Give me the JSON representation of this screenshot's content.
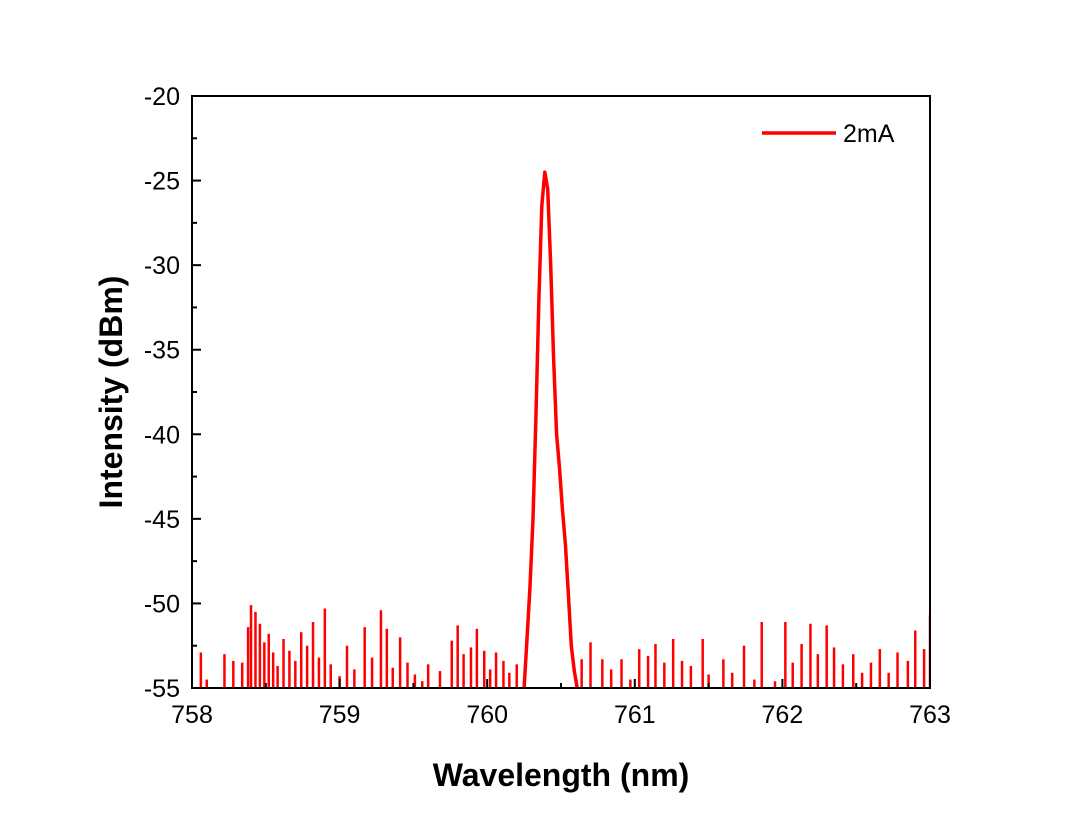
{
  "chart_data": {
    "type": "line",
    "title": "",
    "xlabel": "Wavelength (nm)",
    "ylabel": "Intensity (dBm)",
    "xlim": [
      758,
      763
    ],
    "ylim": [
      -55,
      -20
    ],
    "xticks": [
      758,
      759,
      760,
      761,
      762,
      763
    ],
    "yticks": [
      -20,
      -25,
      -30,
      -35,
      -40,
      -45,
      -50,
      -55
    ],
    "x_tick_labels": [
      "758",
      "759",
      "760",
      "761",
      "762",
      "763"
    ],
    "y_tick_labels": [
      "-20",
      "-25",
      "-30",
      "-35",
      "-40",
      "-45",
      "-50",
      "-55"
    ],
    "grid": false,
    "legend": {
      "position": "top-right",
      "entries": [
        {
          "name": "2mA",
          "color": "#ff0000"
        }
      ]
    },
    "series": [
      {
        "name": "2mA",
        "color": "#ff0000",
        "peak": [
          [
            760.25,
            -55.0
          ],
          [
            760.27,
            -52.0
          ],
          [
            760.29,
            -49.0
          ],
          [
            760.31,
            -45.0
          ],
          [
            760.33,
            -39.0
          ],
          [
            760.35,
            -32.0
          ],
          [
            760.37,
            -26.5
          ],
          [
            760.39,
            -24.5
          ],
          [
            760.41,
            -25.5
          ],
          [
            760.43,
            -30.0
          ],
          [
            760.45,
            -35.5
          ],
          [
            760.47,
            -40.0
          ],
          [
            760.49,
            -42.0
          ],
          [
            760.51,
            -44.5
          ],
          [
            760.53,
            -46.5
          ],
          [
            760.55,
            -49.5
          ],
          [
            760.57,
            -52.5
          ],
          [
            760.59,
            -54.0
          ],
          [
            760.61,
            -55.0
          ]
        ],
        "spikes": [
          [
            758.06,
            -52.9
          ],
          [
            758.1,
            -54.5
          ],
          [
            758.22,
            -53.0
          ],
          [
            758.28,
            -53.4
          ],
          [
            758.34,
            -53.5
          ],
          [
            758.38,
            -51.4
          ],
          [
            758.4,
            -50.1
          ],
          [
            758.43,
            -50.5
          ],
          [
            758.46,
            -51.2
          ],
          [
            758.49,
            -52.3
          ],
          [
            758.52,
            -51.8
          ],
          [
            758.55,
            -52.9
          ],
          [
            758.58,
            -53.7
          ],
          [
            758.62,
            -52.1
          ],
          [
            758.66,
            -52.8
          ],
          [
            758.7,
            -53.4
          ],
          [
            758.74,
            -51.7
          ],
          [
            758.78,
            -52.5
          ],
          [
            758.82,
            -51.1
          ],
          [
            758.86,
            -53.2
          ],
          [
            758.9,
            -50.3
          ],
          [
            758.94,
            -53.6
          ],
          [
            759.0,
            -54.3
          ],
          [
            759.05,
            -52.5
          ],
          [
            759.1,
            -53.9
          ],
          [
            759.17,
            -51.4
          ],
          [
            759.22,
            -53.2
          ],
          [
            759.28,
            -50.4
          ],
          [
            759.32,
            -51.5
          ],
          [
            759.36,
            -53.8
          ],
          [
            759.41,
            -52.0
          ],
          [
            759.46,
            -53.5
          ],
          [
            759.51,
            -54.2
          ],
          [
            759.56,
            -54.6
          ],
          [
            759.6,
            -53.6
          ],
          [
            759.68,
            -54.0
          ],
          [
            759.76,
            -52.2
          ],
          [
            759.8,
            -51.3
          ],
          [
            759.84,
            -53.0
          ],
          [
            759.89,
            -52.6
          ],
          [
            759.93,
            -51.5
          ],
          [
            759.98,
            -52.8
          ],
          [
            760.02,
            -53.9
          ],
          [
            760.06,
            -52.9
          ],
          [
            760.11,
            -53.4
          ],
          [
            760.15,
            -54.1
          ],
          [
            760.2,
            -53.6
          ],
          [
            760.64,
            -53.3
          ],
          [
            760.7,
            -52.3
          ],
          [
            760.78,
            -53.3
          ],
          [
            760.84,
            -53.9
          ],
          [
            760.91,
            -53.3
          ],
          [
            760.97,
            -54.5
          ],
          [
            761.03,
            -52.7
          ],
          [
            761.09,
            -53.1
          ],
          [
            761.14,
            -52.4
          ],
          [
            761.2,
            -53.5
          ],
          [
            761.26,
            -52.1
          ],
          [
            761.32,
            -53.4
          ],
          [
            761.38,
            -53.7
          ],
          [
            761.46,
            -52.1
          ],
          [
            761.5,
            -54.2
          ],
          [
            761.6,
            -53.3
          ],
          [
            761.66,
            -54.1
          ],
          [
            761.74,
            -52.5
          ],
          [
            761.81,
            -54.5
          ],
          [
            761.86,
            -51.1
          ],
          [
            761.95,
            -54.6
          ],
          [
            762.02,
            -51.1
          ],
          [
            762.07,
            -53.5
          ],
          [
            762.13,
            -52.4
          ],
          [
            762.19,
            -51.2
          ],
          [
            762.24,
            -53.0
          ],
          [
            762.3,
            -51.3
          ],
          [
            762.35,
            -52.6
          ],
          [
            762.41,
            -53.6
          ],
          [
            762.48,
            -53.0
          ],
          [
            762.54,
            -54.1
          ],
          [
            762.6,
            -53.5
          ],
          [
            762.66,
            -52.7
          ],
          [
            762.72,
            -54.1
          ],
          [
            762.78,
            -52.9
          ],
          [
            762.85,
            -53.4
          ],
          [
            762.9,
            -51.6
          ],
          [
            762.96,
            -52.7
          ],
          [
            763.0,
            -50.7
          ]
        ]
      }
    ]
  }
}
